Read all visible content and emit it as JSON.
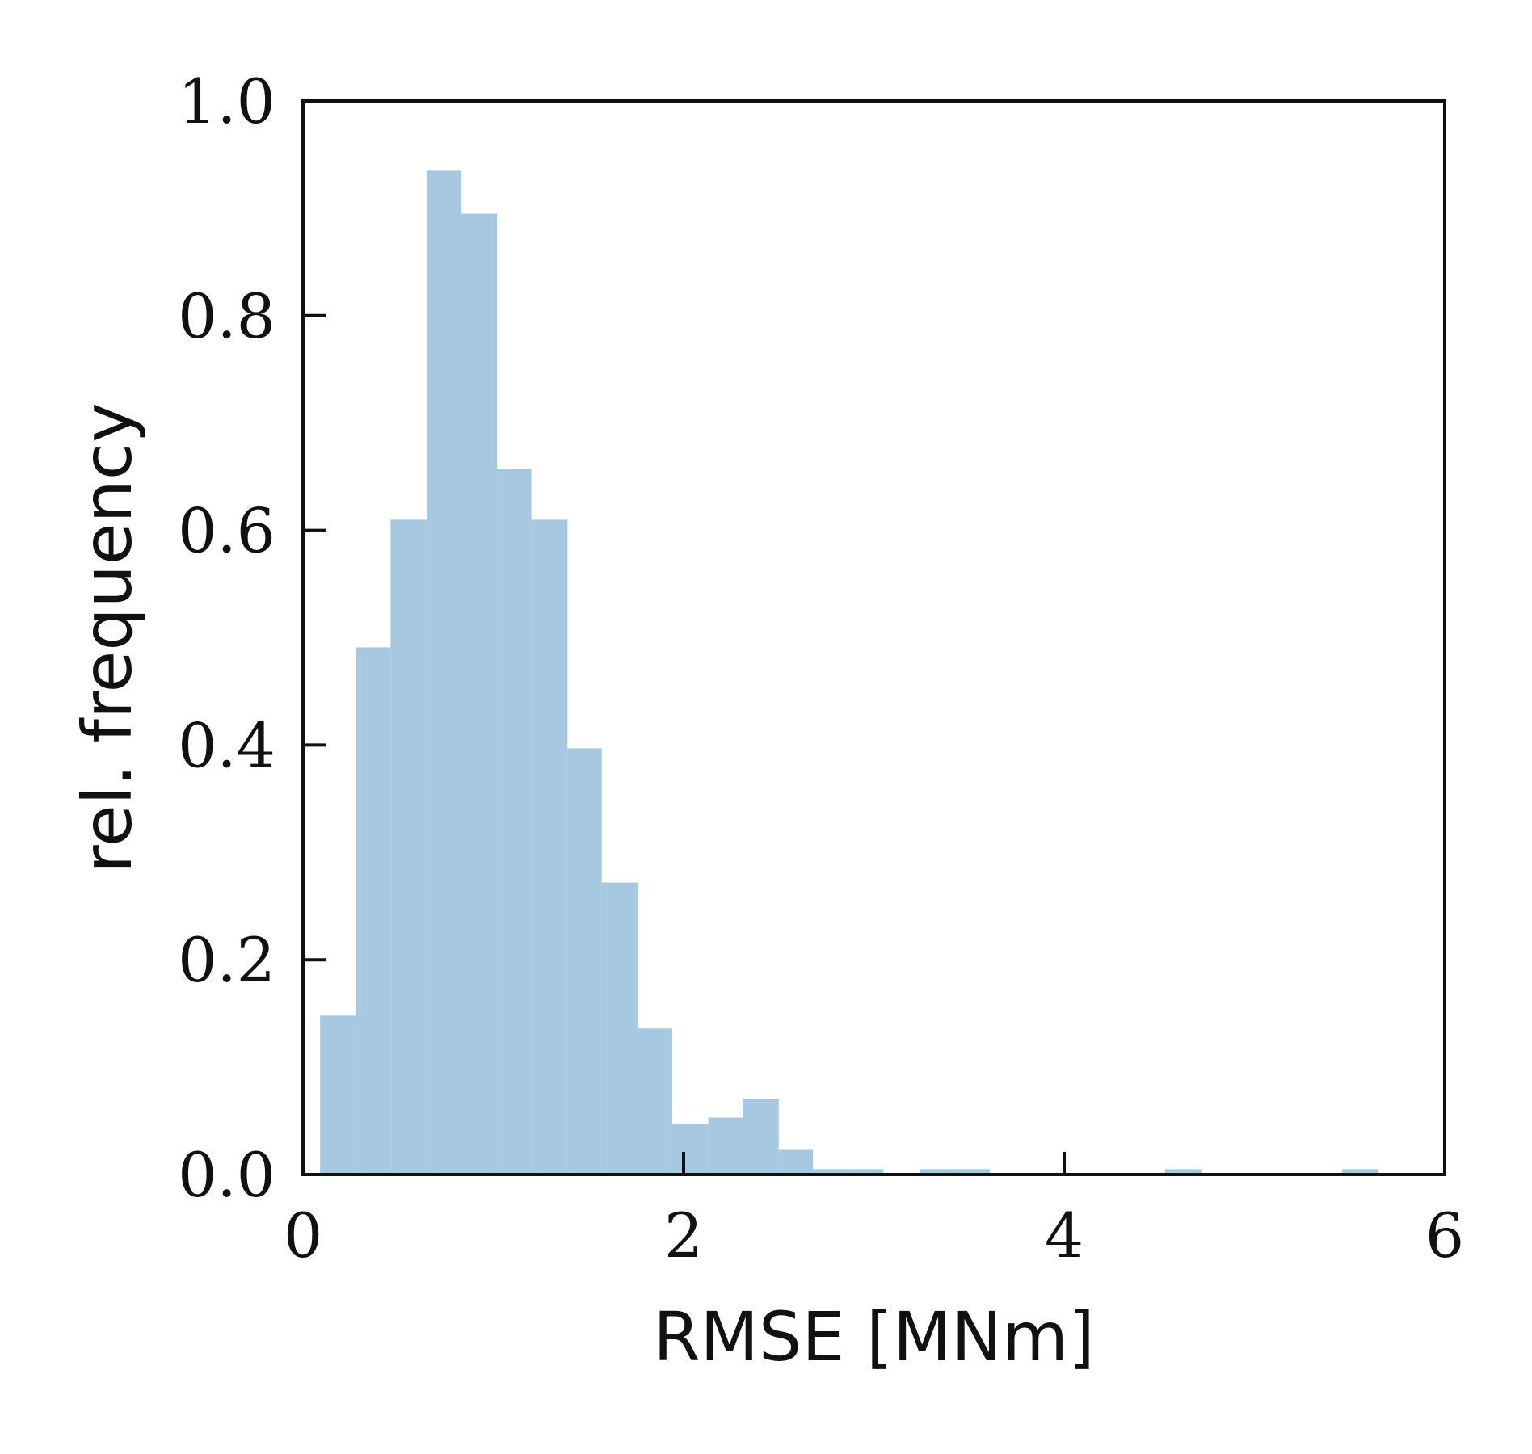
{
  "chart_data": {
    "type": "bar",
    "title": "",
    "xlabel": "RMSE [MNm]",
    "ylabel": "rel. frequency",
    "xlim": [
      0,
      6
    ],
    "ylim": [
      0,
      1.0
    ],
    "xticks": [
      0,
      2,
      4,
      6
    ],
    "xtick_labels": [
      "0",
      "2",
      "4",
      "6"
    ],
    "yticks": [
      0.0,
      0.2,
      0.4,
      0.6,
      0.8,
      1.0
    ],
    "ytick_labels": [
      "0.0",
      "0.2",
      "0.4",
      "0.6",
      "0.8",
      "1.0"
    ],
    "grid": false,
    "legend": "none",
    "bar_color": "#a6c8e0",
    "bins": [
      {
        "x0": 0.09,
        "x1": 0.28,
        "value": 0.148
      },
      {
        "x0": 0.28,
        "x1": 0.46,
        "value": 0.491
      },
      {
        "x0": 0.46,
        "x1": 0.65,
        "value": 0.61
      },
      {
        "x0": 0.65,
        "x1": 0.83,
        "value": 0.935
      },
      {
        "x0": 0.83,
        "x1": 1.02,
        "value": 0.895
      },
      {
        "x0": 1.02,
        "x1": 1.2,
        "value": 0.657
      },
      {
        "x0": 1.2,
        "x1": 1.39,
        "value": 0.61
      },
      {
        "x0": 1.39,
        "x1": 1.57,
        "value": 0.397
      },
      {
        "x0": 1.57,
        "x1": 1.76,
        "value": 0.272
      },
      {
        "x0": 1.76,
        "x1": 1.94,
        "value": 0.136
      },
      {
        "x0": 1.94,
        "x1": 2.13,
        "value": 0.047
      },
      {
        "x0": 2.13,
        "x1": 2.31,
        "value": 0.053
      },
      {
        "x0": 2.31,
        "x1": 2.5,
        "value": 0.07
      },
      {
        "x0": 2.5,
        "x1": 2.68,
        "value": 0.023
      },
      {
        "x0": 2.68,
        "x1": 2.87,
        "value": 0.005
      },
      {
        "x0": 2.87,
        "x1": 3.05,
        "value": 0.005
      },
      {
        "x0": 3.24,
        "x1": 3.42,
        "value": 0.005
      },
      {
        "x0": 3.42,
        "x1": 3.61,
        "value": 0.005
      },
      {
        "x0": 4.53,
        "x1": 4.72,
        "value": 0.005
      },
      {
        "x0": 5.46,
        "x1": 5.65,
        "value": 0.005
      }
    ]
  }
}
